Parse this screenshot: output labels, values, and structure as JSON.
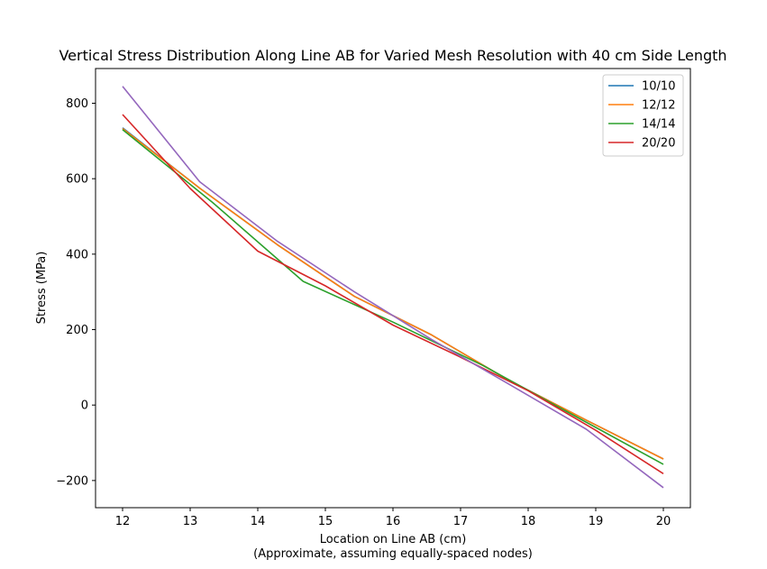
{
  "chart_data": {
    "type": "line",
    "title": "Vertical Stress Distribution Along Line AB for Varied Mesh Resolution with 40 cm Side Length",
    "xlabel": "Location on Line AB (cm)",
    "xlabel_sub": "(Approximate, assuming equally-spaced nodes)",
    "ylabel": "Stress (MPa)",
    "xlim": [
      11.6,
      20.4
    ],
    "ylim": [
      -272,
      892
    ],
    "xticks": [
      12,
      13,
      14,
      15,
      16,
      17,
      18,
      19,
      20
    ],
    "xtick_labels": [
      "12",
      "13",
      "14",
      "15",
      "16",
      "17",
      "18",
      "19",
      "20"
    ],
    "yticks": [
      -200,
      0,
      200,
      400,
      600,
      800
    ],
    "ytick_labels": [
      "−200",
      "0",
      "200",
      "400",
      "600",
      "800"
    ],
    "grid": false,
    "legend_position": "top-right",
    "series": [
      {
        "name": "10/10",
        "color": "#1f77b4",
        "x": [
          12,
          13.14,
          14.29,
          15.43,
          16.57,
          17.71,
          18.86,
          20
        ],
        "y": [
          735,
          575,
          425,
          288,
          186,
          66,
          -40,
          -143
        ]
      },
      {
        "name": "12/12",
        "color": "#ff7f0e",
        "x": [
          12,
          13.14,
          14.29,
          15.43,
          16.57,
          17.71,
          18.86,
          20
        ],
        "y": [
          733,
          575,
          425,
          288,
          186,
          66,
          -40,
          -143
        ]
      },
      {
        "name": "14/14",
        "color": "#2ca02c",
        "x": [
          12,
          13.33,
          14.67,
          16,
          17.33,
          18.67,
          20
        ],
        "y": [
          730,
          537,
          328,
          220,
          105,
          -27,
          -157
        ]
      },
      {
        "name": "20/20",
        "color": "#d62728",
        "x": [
          12,
          13,
          14,
          15,
          16,
          17,
          18,
          19,
          20
        ],
        "y": [
          770,
          574,
          408,
          316,
          212,
          127,
          38,
          -67,
          -182
        ]
      },
      {
        "name": "",
        "color": "#9467bd",
        "x": [
          12,
          13.14,
          14.29,
          15.43,
          16.57,
          17.71,
          18.86,
          20
        ],
        "y": [
          845,
          592,
          434,
          300,
          174,
          56,
          -64,
          -219
        ]
      }
    ]
  }
}
